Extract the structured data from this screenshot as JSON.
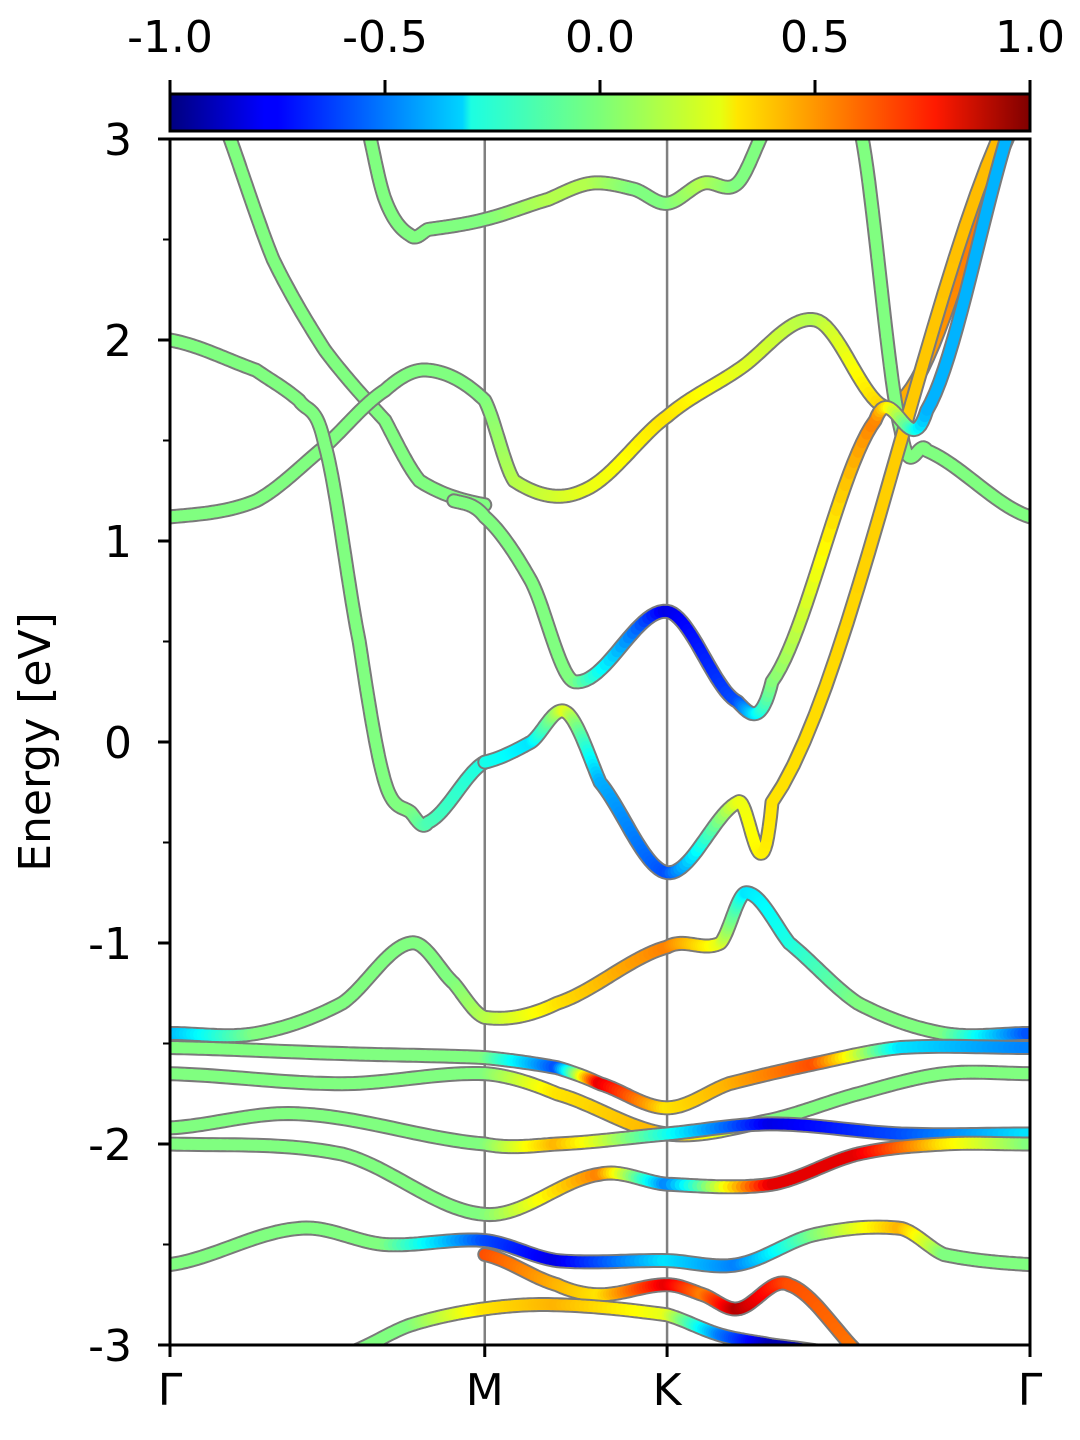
{
  "chart_data": {
    "type": "line",
    "title": "",
    "ylabel": "Energy [eV]",
    "xlabel": "",
    "ylim": [
      -3,
      3
    ],
    "yticks": [
      -3,
      -2,
      -1,
      0,
      1,
      2,
      3
    ],
    "ytick_labels": [
      "-3",
      "-2",
      "-1",
      "0",
      "1",
      "2",
      "3"
    ],
    "x_path": [
      {
        "label": "Γ",
        "k": 0.0
      },
      {
        "label": "M",
        "k": 0.366
      },
      {
        "label": "K",
        "k": 0.578
      },
      {
        "label": "Γ",
        "k": 1.0
      }
    ],
    "colorbar": {
      "min": -1.0,
      "max": 1.0,
      "ticks": [
        "-1.0",
        "-0.5",
        "0.0",
        "0.5",
        "1.0"
      ],
      "colormap": "jet"
    },
    "grid": false,
    "legend": "none",
    "series": [
      {
        "x": [
          0,
          0.07,
          0.12,
          0.18,
          0.25,
          0.29,
          0.366
        ],
        "y": [
          3.6,
          3.0,
          2.4,
          1.95,
          1.6,
          1.3,
          1.18
        ],
        "spin": [
          0,
          0,
          0,
          0,
          0,
          0,
          0
        ]
      },
      {
        "x": [
          0,
          0.1,
          0.18,
          0.25,
          0.3,
          0.366,
          0.4,
          0.48,
          0.578,
          0.66,
          0.75,
          0.85,
          1.0
        ],
        "y": [
          1.12,
          1.2,
          1.47,
          1.75,
          1.85,
          1.7,
          1.3,
          1.25,
          1.62,
          1.85,
          2.1,
          1.7,
          3.2
        ],
        "spin": [
          0,
          0,
          0,
          0,
          0,
          0,
          0.1,
          0.2,
          0.3,
          0.2,
          0.1,
          0.4,
          0.6
        ]
      },
      {
        "x": [
          0.22,
          0.25,
          0.28,
          0.3,
          0.366,
          0.44,
          0.49,
          0.54,
          0.578,
          0.62,
          0.66,
          0.7,
          0.8,
          0.85,
          0.88,
          1.0
        ],
        "y": [
          3.2,
          2.7,
          2.52,
          2.55,
          2.6,
          2.7,
          2.78,
          2.75,
          2.68,
          2.78,
          2.78,
          3.1,
          3.1,
          1.55,
          1.45,
          1.12
        ],
        "spin": [
          0,
          0,
          0,
          0,
          0,
          0.1,
          0.1,
          0,
          0,
          0.1,
          0,
          0,
          0,
          0,
          0,
          0
        ]
      },
      {
        "x": [
          0,
          0.1,
          0.15,
          0.18,
          0.22,
          0.25,
          0.28,
          0.3,
          0.366
        ],
        "y": [
          2.0,
          1.85,
          1.7,
          1.48,
          0.5,
          -0.2,
          -0.35,
          -0.4,
          -0.1
        ],
        "spin": [
          0,
          0,
          0,
          0,
          0,
          0,
          0,
          -0.1,
          -0.2
        ]
      },
      {
        "x": [
          0.366,
          0.42,
          0.46,
          0.5,
          0.578,
          0.66,
          0.7,
          1.0
        ],
        "y": [
          -0.1,
          0.0,
          0.15,
          -0.2,
          -0.65,
          -0.3,
          -0.3,
          3.3
        ],
        "spin": [
          -0.2,
          -0.3,
          0.2,
          -0.4,
          -0.6,
          0.2,
          0.3,
          0.4
        ]
      },
      {
        "x": [
          0.33,
          0.366,
          0.42,
          0.47,
          0.578,
          0.66,
          0.7,
          0.82,
          0.88,
          1.0
        ],
        "y": [
          1.2,
          1.12,
          0.8,
          0.3,
          0.65,
          0.2,
          0.3,
          1.6,
          1.65,
          3.3
        ],
        "spin": [
          0,
          0,
          0,
          0,
          -0.8,
          -0.6,
          0,
          0.5,
          -0.4,
          -0.4
        ]
      },
      {
        "x": [
          0,
          0.1,
          0.2,
          0.28,
          0.33,
          0.366,
          0.45,
          0.578,
          0.64,
          0.67,
          0.72,
          0.8,
          0.9,
          1.0
        ],
        "y": [
          -1.45,
          -1.45,
          -1.3,
          -1.0,
          -1.2,
          -1.37,
          -1.3,
          -1.02,
          -1.0,
          -0.75,
          -1.0,
          -1.3,
          -1.45,
          -1.45
        ],
        "spin": [
          -0.4,
          0,
          0,
          0,
          0,
          0.1,
          0.3,
          0.5,
          0.2,
          -0.3,
          -0.2,
          0,
          0,
          -0.6
        ]
      },
      {
        "x": [
          0,
          0.2,
          0.366,
          0.45,
          0.5,
          0.578,
          0.65,
          0.75,
          0.85,
          1.0
        ],
        "y": [
          -1.52,
          -1.55,
          -1.57,
          -1.62,
          -1.7,
          -1.82,
          -1.7,
          -1.6,
          -1.52,
          -1.52
        ],
        "spin": [
          0,
          0,
          0,
          -0.6,
          0.8,
          0.3,
          0.4,
          0.6,
          -0.3,
          -0.5
        ]
      },
      {
        "x": [
          0,
          0.2,
          0.366,
          0.45,
          0.578,
          0.7,
          0.8,
          0.9,
          1.0
        ],
        "y": [
          -1.65,
          -1.7,
          -1.65,
          -1.75,
          -1.95,
          -1.88,
          -1.75,
          -1.65,
          -1.65
        ],
        "spin": [
          0,
          0,
          0,
          0.3,
          0.4,
          0,
          0,
          0,
          0
        ]
      },
      {
        "x": [
          0,
          0.15,
          0.366,
          0.45,
          0.578,
          0.7,
          0.85,
          1.0
        ],
        "y": [
          -1.92,
          -1.85,
          -2.0,
          -2.0,
          -1.95,
          -1.9,
          -1.95,
          -1.95
        ],
        "spin": [
          0,
          0,
          0,
          0.4,
          -0.2,
          -0.8,
          -0.6,
          -0.3
        ]
      },
      {
        "x": [
          0,
          0.2,
          0.366,
          0.5,
          0.578,
          0.7,
          0.8,
          0.9,
          1.0
        ],
        "y": [
          -2.0,
          -2.05,
          -2.35,
          -2.15,
          -2.2,
          -2.2,
          -2.05,
          -2.0,
          -2.0
        ],
        "spin": [
          0,
          0,
          0,
          0.5,
          -0.5,
          0.8,
          0.8,
          0.3,
          0
        ]
      },
      {
        "x": [
          0,
          0.15,
          0.25,
          0.366,
          0.45,
          0.578,
          0.66,
          0.75,
          0.85,
          0.9,
          1.0
        ],
        "y": [
          -2.6,
          -2.42,
          -2.5,
          -2.48,
          -2.58,
          -2.58,
          -2.6,
          -2.45,
          -2.42,
          -2.55,
          -2.6
        ],
        "spin": [
          0,
          0,
          0,
          -0.6,
          -0.8,
          -0.3,
          -0.5,
          0,
          0.4,
          0,
          0
        ]
      },
      {
        "x": [
          0.366,
          0.45,
          0.5,
          0.578,
          0.62,
          0.66,
          0.72,
          0.82
        ],
        "y": [
          -2.55,
          -2.7,
          -2.75,
          -2.7,
          -2.75,
          -2.82,
          -2.7,
          -3.1
        ],
        "spin": [
          0.6,
          0.4,
          0.3,
          0.8,
          0.5,
          0.9,
          0.6,
          0.5
        ]
      },
      {
        "x": [
          0.2,
          0.28,
          0.366,
          0.45,
          0.578,
          0.64,
          0.7,
          0.8
        ],
        "y": [
          -3.05,
          -2.9,
          -2.82,
          -2.8,
          -2.85,
          -2.95,
          -3.0,
          -3.05
        ],
        "spin": [
          0,
          0,
          0.3,
          0.4,
          0.2,
          -0.5,
          -0.9,
          -0.9
        ]
      }
    ]
  }
}
